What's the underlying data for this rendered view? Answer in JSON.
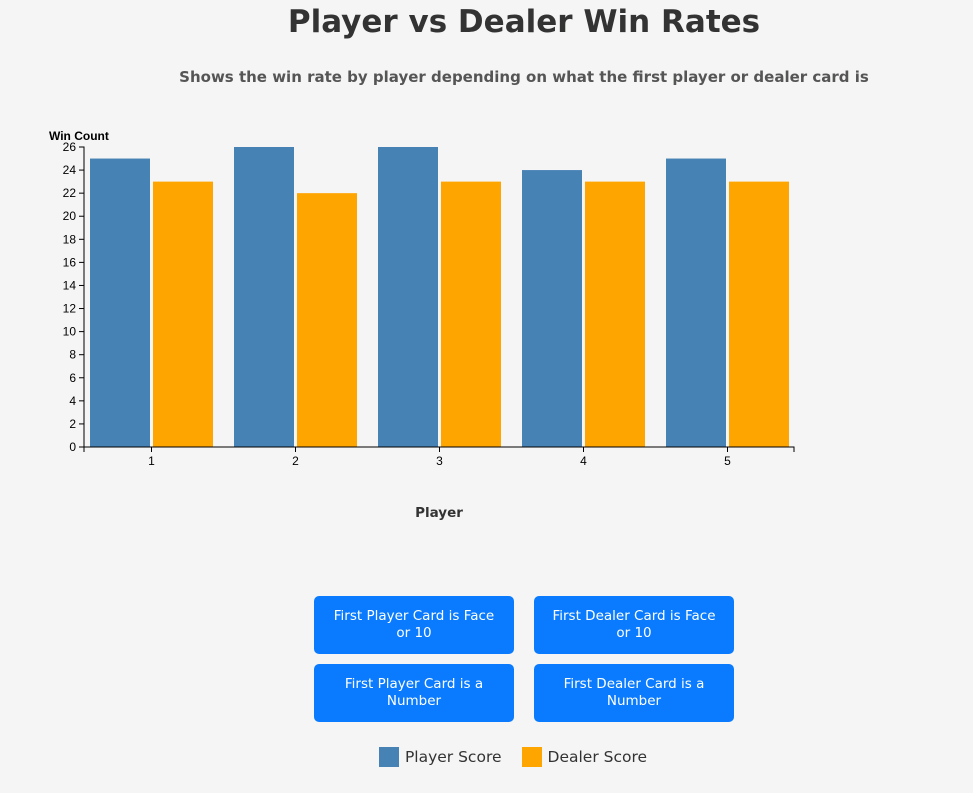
{
  "header": {
    "title": "Player vs Dealer Win Rates",
    "subtitle": "Shows the win rate by player depending on what the first player or dealer card is"
  },
  "chart_data": {
    "type": "bar",
    "categories": [
      "1",
      "2",
      "3",
      "4",
      "5"
    ],
    "series": [
      {
        "name": "Player Score",
        "values": [
          25,
          26,
          26,
          24,
          25
        ],
        "color": "#4682b4"
      },
      {
        "name": "Dealer Score",
        "values": [
          23,
          22,
          23,
          23,
          23
        ],
        "color": "#ffa500"
      }
    ],
    "xlabel": "Player",
    "ylabel": "Win Count",
    "ylim": [
      0,
      26
    ],
    "yticks": [
      0,
      2,
      4,
      6,
      8,
      10,
      12,
      14,
      16,
      18,
      20,
      22,
      24,
      26
    ],
    "grid": false,
    "legend_position": "bottom-center"
  },
  "buttons": {
    "player_face": "First Player Card is Face or 10",
    "dealer_face": "First Dealer Card is Face or 10",
    "player_number": "First Player Card is a Number",
    "dealer_number": "First Dealer Card is a Number"
  },
  "legend": {
    "player_label": "Player Score",
    "dealer_label": "Dealer Score",
    "player_color": "#4682b4",
    "dealer_color": "#ffa500"
  }
}
